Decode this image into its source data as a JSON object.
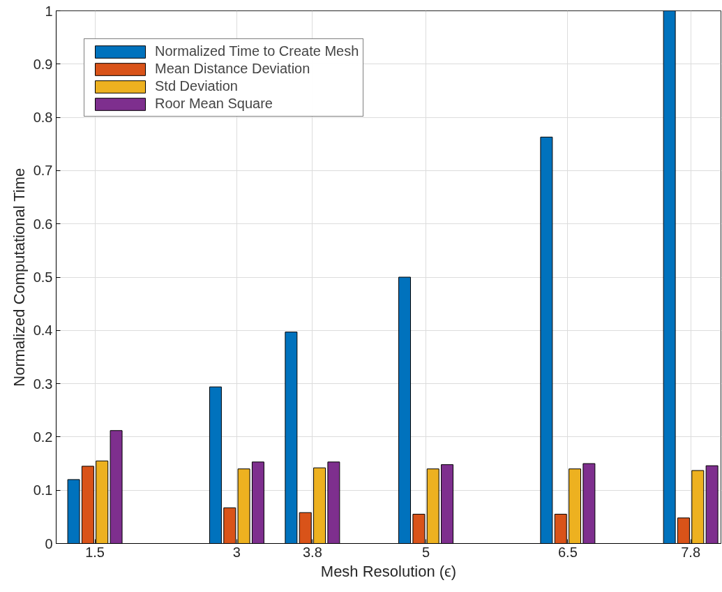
{
  "chart_data": {
    "type": "bar",
    "xlabel": "Mesh Resolution (ϵ)",
    "ylabel": "Normalized Computational Time",
    "x": [
      1.5,
      3,
      3.8,
      5,
      6.5,
      7.8
    ],
    "series": [
      {
        "name": "Normalized Time to Create Mesh",
        "color": "#0072bd",
        "values": [
          0.12,
          0.294,
          0.397,
          0.5,
          0.763,
          1.0
        ]
      },
      {
        "name": "Mean Distance Deviation",
        "color": "#d95319",
        "values": [
          0.145,
          0.067,
          0.058,
          0.055,
          0.055,
          0.048
        ]
      },
      {
        "name": "Std Deviation",
        "color": "#edb120",
        "values": [
          0.155,
          0.14,
          0.142,
          0.14,
          0.14,
          0.137
        ]
      },
      {
        "name": "Roor Mean Square",
        "color": "#7e2f8e",
        "values": [
          0.212,
          0.153,
          0.153,
          0.148,
          0.15,
          0.146
        ]
      }
    ],
    "xlim": [
      1.09,
      8.12
    ],
    "xticks": [
      1.5,
      3,
      3.8,
      5,
      6.5,
      7.8
    ],
    "ylim": [
      0,
      1
    ],
    "yticks": [
      0,
      0.1,
      0.2,
      0.3,
      0.4,
      0.5,
      0.6,
      0.7,
      0.8,
      0.9,
      1
    ],
    "grid": true,
    "legend": "top left"
  }
}
